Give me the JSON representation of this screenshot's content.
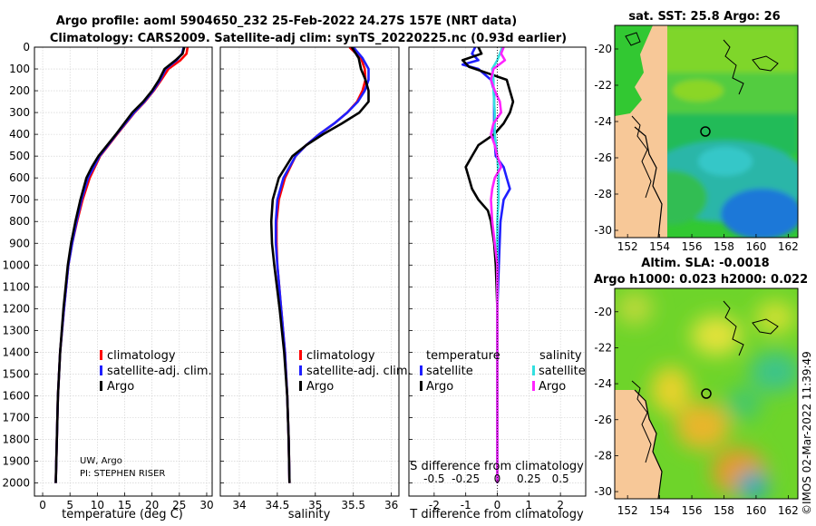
{
  "title": {
    "line1": "Argo profile: aoml 5904650_232 25-Feb-2022 24.27S 157E (NRT data)",
    "line2": "Climatology: CARS2009. Satellite-adj clim: synTS_20220225.nc (0.93d earlier)"
  },
  "colors": {
    "climatology": "#ff0000",
    "satellite_adj": "#1f1fff",
    "argo": "#000000",
    "sat_T": "#33e0e0",
    "argo_S": "#ff22ff"
  },
  "credits": {
    "line1": "UW, Argo",
    "line2": "PI: STEPHEN RISER"
  },
  "right_label": "©IMOS 02-Mar-2022 11:39:49",
  "chart_data": [
    {
      "id": "temperature",
      "type": "line",
      "xlabel": "temperature (deg C)",
      "xlim": [
        -1.5,
        31
      ],
      "ylim": [
        2060,
        0
      ],
      "xticks": [
        0,
        5,
        10,
        15,
        20,
        25,
        30
      ],
      "yticks": [
        0,
        100,
        200,
        300,
        400,
        500,
        600,
        700,
        800,
        900,
        1000,
        1100,
        1200,
        1300,
        1400,
        1500,
        1600,
        1700,
        1800,
        1900,
        2000
      ],
      "legend": [
        "climatology",
        "satellite-adj. clim.",
        "Argo"
      ],
      "series": [
        {
          "name": "climatology",
          "color": "#ff0000",
          "depth": [
            0,
            30,
            60,
            100,
            150,
            200,
            250,
            300,
            400,
            500,
            600,
            700,
            800,
            900,
            1000,
            1200,
            1400,
            1600,
            1800,
            2000
          ],
          "values": [
            26.5,
            26.3,
            25.2,
            23.0,
            21.7,
            20.3,
            18.7,
            16.8,
            13.6,
            10.5,
            8.6,
            7.3,
            6.3,
            5.4,
            4.7,
            3.9,
            3.2,
            2.8,
            2.6,
            2.4
          ]
        },
        {
          "name": "satellite-adj. clim.",
          "color": "#1f1fff",
          "depth": [
            0,
            30,
            60,
            100,
            150,
            200,
            250,
            300,
            400,
            500,
            600,
            700,
            800,
            900,
            1000,
            1200,
            1400,
            1600,
            1800,
            2000
          ],
          "values": [
            25.8,
            25.5,
            24.5,
            22.5,
            21.5,
            20.2,
            18.6,
            16.7,
            13.5,
            10.4,
            8.3,
            7.1,
            6.2,
            5.4,
            4.7,
            3.9,
            3.2,
            2.8,
            2.6,
            2.4
          ]
        },
        {
          "name": "Argo",
          "color": "#000000",
          "depth": [
            0,
            30,
            60,
            100,
            150,
            200,
            250,
            300,
            400,
            500,
            550,
            600,
            700,
            800,
            900,
            1000,
            1200,
            1400,
            1600,
            1800,
            2000
          ],
          "values": [
            25.9,
            25.6,
            24.3,
            22.3,
            21.3,
            20.0,
            18.4,
            16.4,
            13.4,
            10.2,
            9.0,
            8.0,
            6.9,
            6.0,
            5.2,
            4.6,
            3.8,
            3.2,
            2.8,
            2.6,
            2.4
          ]
        }
      ]
    },
    {
      "id": "salinity",
      "type": "line",
      "xlabel": "salinity",
      "xlim": [
        33.75,
        36.1
      ],
      "ylim": [
        2060,
        0
      ],
      "xticks": [
        34,
        34.5,
        35,
        35.5,
        36
      ],
      "legend": [
        "climatology",
        "satellite-adj. clim.",
        "Argo"
      ],
      "series": [
        {
          "name": "climatology",
          "color": "#ff0000",
          "depth": [
            0,
            50,
            100,
            150,
            200,
            250,
            300,
            350,
            400,
            450,
            500,
            600,
            700,
            800,
            900,
            1000,
            1200,
            1400,
            1600,
            1800,
            2000
          ],
          "values": [
            35.45,
            35.6,
            35.65,
            35.66,
            35.62,
            35.55,
            35.42,
            35.25,
            35.05,
            34.88,
            34.74,
            34.6,
            34.52,
            34.49,
            34.49,
            34.5,
            34.55,
            34.6,
            34.63,
            34.65,
            34.66
          ]
        },
        {
          "name": "satellite-adj. clim.",
          "color": "#1f1fff",
          "depth": [
            0,
            50,
            100,
            150,
            200,
            250,
            300,
            350,
            400,
            450,
            500,
            600,
            700,
            800,
            900,
            1000,
            1200,
            1400,
            1600,
            1800,
            2000
          ],
          "values": [
            35.5,
            35.62,
            35.7,
            35.7,
            35.65,
            35.56,
            35.42,
            35.25,
            35.05,
            34.88,
            34.74,
            34.58,
            34.5,
            34.48,
            34.48,
            34.5,
            34.55,
            34.6,
            34.63,
            34.65,
            34.66
          ]
        },
        {
          "name": "Argo",
          "color": "#000000",
          "depth": [
            0,
            50,
            100,
            150,
            200,
            250,
            300,
            350,
            400,
            450,
            500,
            600,
            700,
            800,
            900,
            1000,
            1200,
            1400,
            1600,
            1800,
            2000
          ],
          "values": [
            35.48,
            35.57,
            35.6,
            35.66,
            35.7,
            35.7,
            35.58,
            35.35,
            35.1,
            34.88,
            34.7,
            34.52,
            34.44,
            34.42,
            34.43,
            34.46,
            34.53,
            34.59,
            34.63,
            34.65,
            34.66
          ]
        }
      ]
    },
    {
      "id": "difference",
      "type": "line",
      "xlabel": "T difference from climatology",
      "xlabel2": "S difference from climatology",
      "xlim": [
        -2.8,
        2.8
      ],
      "ylim": [
        2060,
        0
      ],
      "xticks": [
        -2,
        -1,
        0,
        1,
        2
      ],
      "xticks2_values": [
        -0.5,
        -0.25,
        0,
        0.25,
        0.5
      ],
      "xticks2": [
        "-0.5",
        "-0.25",
        "0",
        "0.25",
        "0.5"
      ],
      "legend_titles": [
        "temperature",
        "salinity"
      ],
      "legend": [
        "satellite",
        "Argo",
        "satellite",
        "Argo"
      ],
      "series": [
        {
          "name": "temperature satellite",
          "color": "#1f1fff",
          "depth": [
            0,
            30,
            60,
            80,
            100,
            150,
            200,
            300,
            400,
            500,
            550,
            600,
            650,
            700,
            800,
            1000,
            1200,
            1500,
            2000
          ],
          "values": [
            -0.7,
            -0.8,
            -0.6,
            -1.1,
            -0.6,
            -0.2,
            -0.1,
            -0.1,
            -0.1,
            -0.05,
            0.2,
            0.3,
            0.4,
            0.2,
            0.1,
            0.05,
            0.0,
            0.0,
            0.0
          ]
        },
        {
          "name": "temperature Argo",
          "color": "#000000",
          "depth": [
            0,
            30,
            60,
            90,
            120,
            150,
            200,
            250,
            300,
            350,
            400,
            450,
            500,
            550,
            600,
            650,
            700,
            750,
            800,
            900,
            1000,
            1200,
            1500,
            2000
          ],
          "values": [
            -0.6,
            -0.5,
            -1.1,
            -0.9,
            -0.3,
            0.3,
            0.4,
            0.5,
            0.4,
            0.2,
            -0.1,
            -0.6,
            -0.8,
            -1.0,
            -0.9,
            -0.8,
            -0.6,
            -0.3,
            -0.2,
            -0.1,
            -0.05,
            0.0,
            0.0,
            0.0
          ]
        },
        {
          "name": "salinity satellite",
          "color": "#33e0e0",
          "depth": [
            0,
            30,
            60,
            100,
            150,
            200,
            300,
            400,
            500,
            600,
            700,
            800,
            1000,
            1200,
            1500,
            2000
          ],
          "values": [
            0.04,
            0.02,
            0.0,
            -0.04,
            -0.03,
            -0.03,
            -0.02,
            -0.02,
            0.0,
            0.01,
            0.01,
            0.0,
            0.0,
            0.0,
            0.0,
            0.0
          ]
        },
        {
          "name": "salinity Argo",
          "color": "#ff22ff",
          "depth": [
            0,
            30,
            60,
            100,
            150,
            200,
            250,
            300,
            350,
            400,
            450,
            500,
            550,
            600,
            650,
            700,
            800,
            1000,
            1200,
            1500,
            2000
          ],
          "values": [
            0.05,
            0.03,
            0.06,
            -0.03,
            -0.05,
            -0.02,
            0.02,
            0.03,
            -0.03,
            -0.05,
            -0.02,
            0.0,
            0.03,
            -0.02,
            -0.04,
            -0.05,
            -0.04,
            0.0,
            0.0,
            0.0,
            0.0
          ]
        }
      ]
    },
    {
      "id": "sst_map",
      "type": "heatmap",
      "title": "sat. SST: 25.8 Argo: 26",
      "xlim": [
        151.2,
        162.6
      ],
      "ylim": [
        -30.4,
        -18.7
      ],
      "xticks": [
        152,
        154,
        156,
        158,
        160,
        162
      ],
      "yticks": [
        -20,
        -22,
        -24,
        -26,
        -28,
        -30
      ],
      "float_position": [
        157,
        -24.27
      ]
    },
    {
      "id": "sla_map",
      "type": "heatmap",
      "title": "Altim. SLA: -0.0018",
      "subtitle": "Argo h1000: 0.023 h2000: 0.022",
      "xlim": [
        151.2,
        162.6
      ],
      "ylim": [
        -30.4,
        -18.7
      ],
      "xticks": [
        152,
        154,
        156,
        158,
        160,
        162
      ],
      "yticks": [
        -20,
        -22,
        -24,
        -26,
        -28,
        -30
      ],
      "float_position": [
        157,
        -24.27
      ]
    }
  ]
}
